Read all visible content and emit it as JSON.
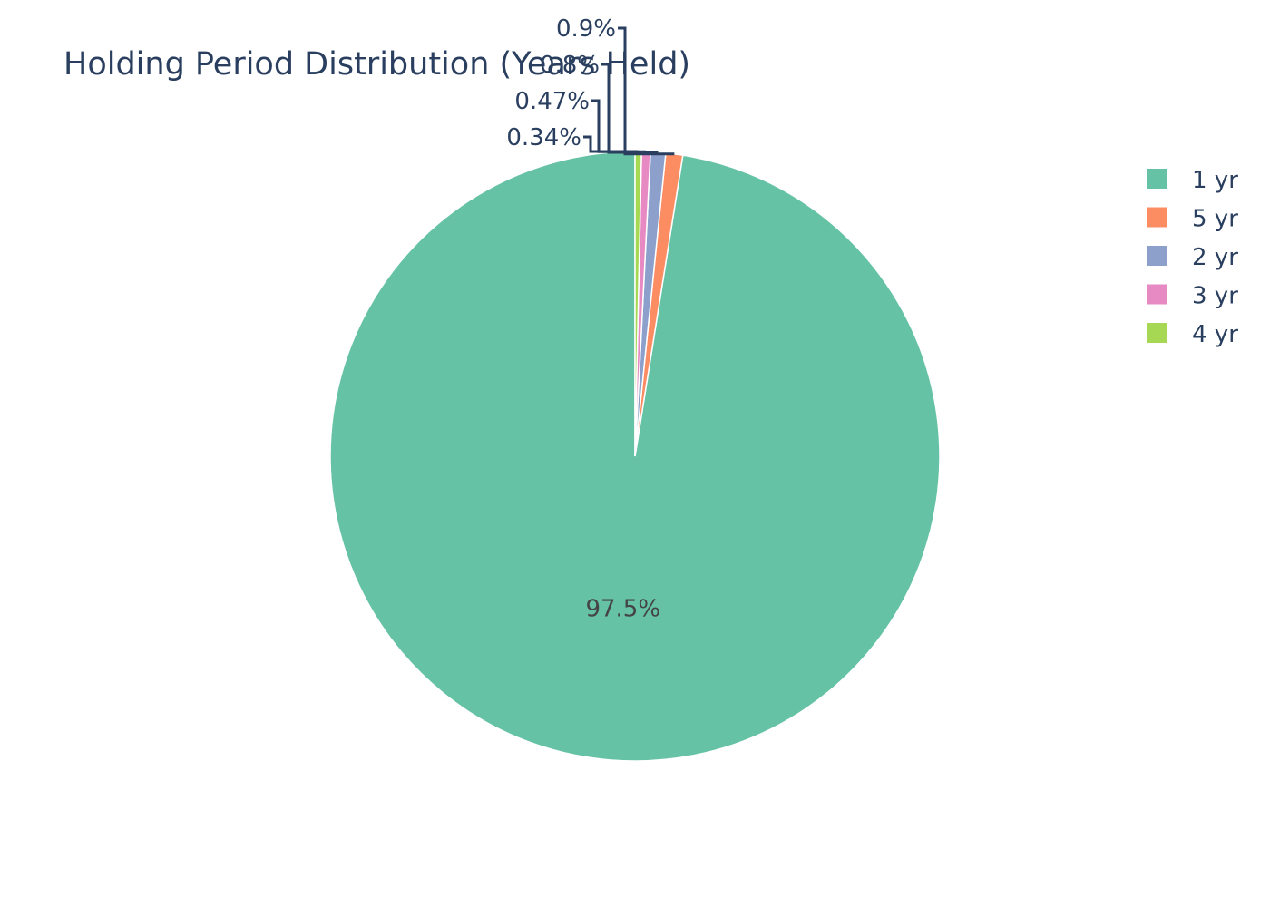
{
  "chart_data": {
    "type": "pie",
    "title": "Holding Period Distribution (Years Held)",
    "categories": [
      "1 yr",
      "5 yr",
      "2 yr",
      "3 yr",
      "4 yr"
    ],
    "values": [
      97.5,
      0.9,
      0.8,
      0.47,
      0.34
    ],
    "labels": [
      "97.5%",
      "0.9%",
      "0.8%",
      "0.47%",
      "0.34%"
    ],
    "colors": [
      "#66c2a5",
      "#fc8d62",
      "#8da0cb",
      "#e78ac3",
      "#a6d854"
    ],
    "legend": {
      "placement": "top-right",
      "items": [
        "1 yr",
        "5 yr",
        "2 yr",
        "3 yr",
        "4 yr"
      ]
    },
    "direction": "counterclockwise",
    "start_angle": "12 o'clock"
  }
}
